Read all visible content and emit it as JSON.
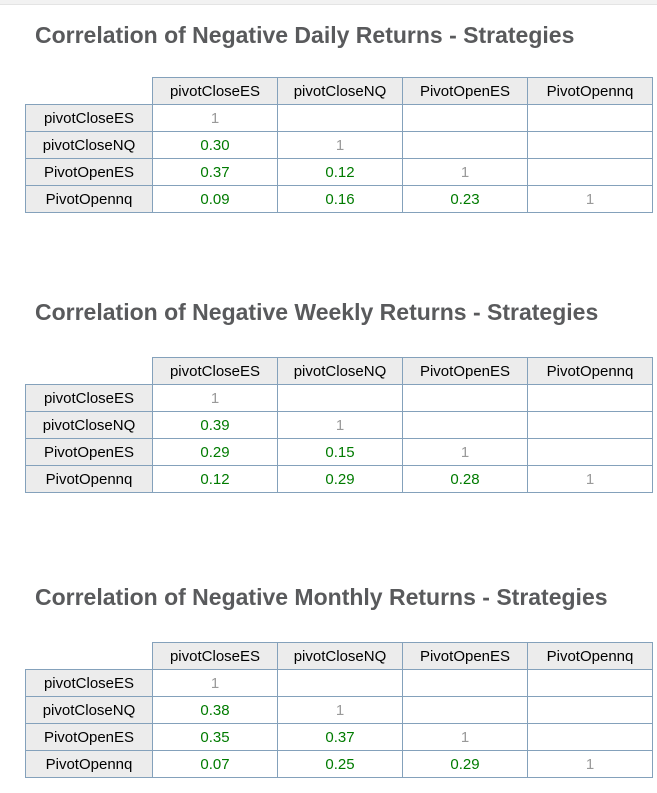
{
  "colors": {
    "title_gray": "#595a5c",
    "table_border": "#84a1bb",
    "header_background": "#ececec",
    "value_green": "#007b00",
    "diagonal_gray": "#9a9a9a"
  },
  "sections": [
    {
      "title": "Correlation of Negative Daily Returns - Strategies",
      "columns": [
        "pivotCloseES",
        "pivotCloseNQ",
        "PivotOpenES",
        "PivotOpennq"
      ],
      "rows": [
        {
          "label": "pivotCloseES",
          "values": [
            "1",
            "",
            "",
            ""
          ]
        },
        {
          "label": "pivotCloseNQ",
          "values": [
            "0.30",
            "1",
            "",
            ""
          ]
        },
        {
          "label": "PivotOpenES",
          "values": [
            "0.37",
            "0.12",
            "1",
            ""
          ]
        },
        {
          "label": "PivotOpennq",
          "values": [
            "0.09",
            "0.16",
            "0.23",
            "1"
          ]
        }
      ]
    },
    {
      "title": "Correlation of Negative Weekly Returns - Strategies",
      "columns": [
        "pivotCloseES",
        "pivotCloseNQ",
        "PivotOpenES",
        "PivotOpennq"
      ],
      "rows": [
        {
          "label": "pivotCloseES",
          "values": [
            "1",
            "",
            "",
            ""
          ]
        },
        {
          "label": "pivotCloseNQ",
          "values": [
            "0.39",
            "1",
            "",
            ""
          ]
        },
        {
          "label": "PivotOpenES",
          "values": [
            "0.29",
            "0.15",
            "1",
            ""
          ]
        },
        {
          "label": "PivotOpennq",
          "values": [
            "0.12",
            "0.29",
            "0.28",
            "1"
          ]
        }
      ]
    },
    {
      "title": "Correlation of Negative Monthly Returns - Strategies",
      "columns": [
        "pivotCloseES",
        "pivotCloseNQ",
        "PivotOpenES",
        "PivotOpennq"
      ],
      "rows": [
        {
          "label": "pivotCloseES",
          "values": [
            "1",
            "",
            "",
            ""
          ]
        },
        {
          "label": "pivotCloseNQ",
          "values": [
            "0.38",
            "1",
            "",
            ""
          ]
        },
        {
          "label": "PivotOpenES",
          "values": [
            "0.35",
            "0.37",
            "1",
            ""
          ]
        },
        {
          "label": "PivotOpennq",
          "values": [
            "0.07",
            "0.25",
            "0.29",
            "1"
          ]
        }
      ]
    }
  ],
  "chart_data": [
    {
      "type": "table",
      "title": "Correlation of Negative Daily Returns - Strategies",
      "columns": [
        "pivotCloseES",
        "pivotCloseNQ",
        "PivotOpenES",
        "PivotOpennq"
      ],
      "row_labels": [
        "pivotCloseES",
        "pivotCloseNQ",
        "PivotOpenES",
        "PivotOpennq"
      ],
      "values": [
        [
          1,
          null,
          null,
          null
        ],
        [
          0.3,
          1,
          null,
          null
        ],
        [
          0.37,
          0.12,
          1,
          null
        ],
        [
          0.09,
          0.16,
          0.23,
          1
        ]
      ]
    },
    {
      "type": "table",
      "title": "Correlation of Negative Weekly Returns - Strategies",
      "columns": [
        "pivotCloseES",
        "pivotCloseNQ",
        "PivotOpenES",
        "PivotOpennq"
      ],
      "row_labels": [
        "pivotCloseES",
        "pivotCloseNQ",
        "PivotOpenES",
        "PivotOpennq"
      ],
      "values": [
        [
          1,
          null,
          null,
          null
        ],
        [
          0.39,
          1,
          null,
          null
        ],
        [
          0.29,
          0.15,
          1,
          null
        ],
        [
          0.12,
          0.29,
          0.28,
          1
        ]
      ]
    },
    {
      "type": "table",
      "title": "Correlation of Negative Monthly Returns - Strategies",
      "columns": [
        "pivotCloseES",
        "pivotCloseNQ",
        "PivotOpenES",
        "PivotOpennq"
      ],
      "row_labels": [
        "pivotCloseES",
        "pivotCloseNQ",
        "PivotOpenES",
        "PivotOpennq"
      ],
      "values": [
        [
          1,
          null,
          null,
          null
        ],
        [
          0.38,
          1,
          null,
          null
        ],
        [
          0.35,
          0.37,
          1,
          null
        ],
        [
          0.07,
          0.25,
          0.29,
          1
        ]
      ]
    }
  ]
}
